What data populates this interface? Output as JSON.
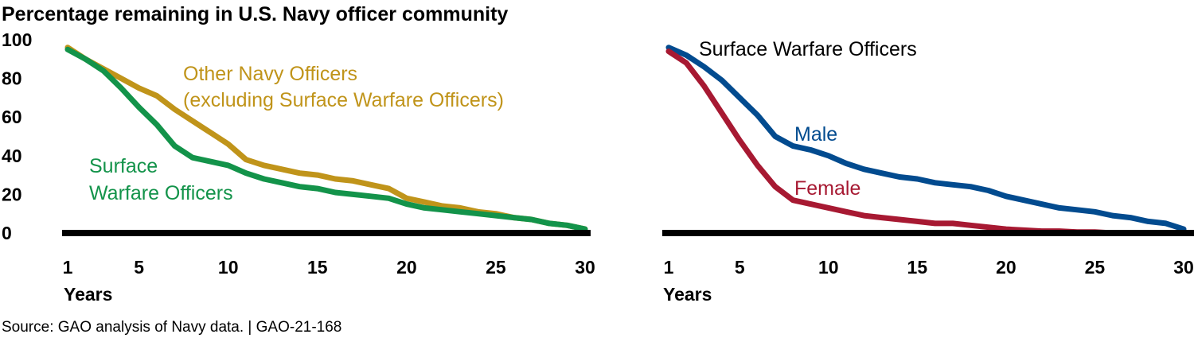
{
  "title": "Percentage remaining in U.S. Navy officer community",
  "source": "Source: GAO analysis of Navy data.  |  GAO-21-168",
  "chart_data": [
    {
      "type": "line",
      "xlabel": "Years",
      "ylabel": "",
      "xlim": [
        1,
        30
      ],
      "ylim": [
        0,
        100
      ],
      "xticks": [
        1,
        5,
        10,
        15,
        20,
        25,
        30
      ],
      "yticks": [
        0,
        20,
        40,
        60,
        80,
        100
      ],
      "grid": false,
      "x": [
        1,
        2,
        3,
        4,
        5,
        6,
        7,
        8,
        9,
        10,
        11,
        12,
        13,
        14,
        15,
        16,
        17,
        18,
        19,
        20,
        21,
        22,
        23,
        24,
        25,
        26,
        27,
        28,
        29,
        30
      ],
      "series": [
        {
          "name": "Other Navy Officers",
          "name2": "(excluding Surface Warfare Officers)",
          "color": "#c0941a",
          "values": [
            96,
            90,
            85,
            80,
            75,
            71,
            64,
            58,
            52,
            46,
            38,
            35,
            33,
            31,
            30,
            28,
            27,
            25,
            23,
            18,
            16,
            14,
            13,
            11,
            10,
            8,
            7,
            5,
            4,
            2
          ]
        },
        {
          "name": "Surface",
          "name2": "Warfare Officers",
          "color": "#13934a",
          "values": [
            95,
            90,
            84,
            75,
            65,
            56,
            45,
            39,
            37,
            35,
            31,
            28,
            26,
            24,
            23,
            21,
            20,
            19,
            18,
            15,
            13,
            12,
            11,
            10,
            9,
            8,
            7,
            5,
            4,
            2
          ]
        }
      ]
    },
    {
      "type": "line",
      "title": "Surface Warfare Officers",
      "xlabel": "Years",
      "xlim": [
        1,
        30
      ],
      "ylim": [
        0,
        100
      ],
      "xticks": [
        1,
        5,
        10,
        15,
        20,
        25,
        30
      ],
      "grid": false,
      "x": [
        1,
        2,
        3,
        4,
        5,
        6,
        7,
        8,
        9,
        10,
        11,
        12,
        13,
        14,
        15,
        16,
        17,
        18,
        19,
        20,
        21,
        22,
        23,
        24,
        25,
        26,
        27,
        28,
        29,
        30
      ],
      "series": [
        {
          "name": "Male",
          "color": "#024b8f",
          "values": [
            96,
            92,
            86,
            79,
            70,
            61,
            50,
            45,
            43,
            40,
            36,
            33,
            31,
            29,
            28,
            26,
            25,
            24,
            22,
            19,
            17,
            15,
            13,
            12,
            11,
            9,
            8,
            6,
            5,
            2
          ]
        },
        {
          "name": "Female",
          "color": "#a71932",
          "values": [
            94,
            88,
            76,
            62,
            48,
            35,
            24,
            17,
            15,
            13,
            11,
            9,
            8,
            7,
            6,
            5,
            5,
            4,
            3,
            2,
            1.5,
            1,
            1,
            0.5,
            0.5,
            0,
            0,
            0,
            0,
            0
          ]
        }
      ]
    }
  ]
}
